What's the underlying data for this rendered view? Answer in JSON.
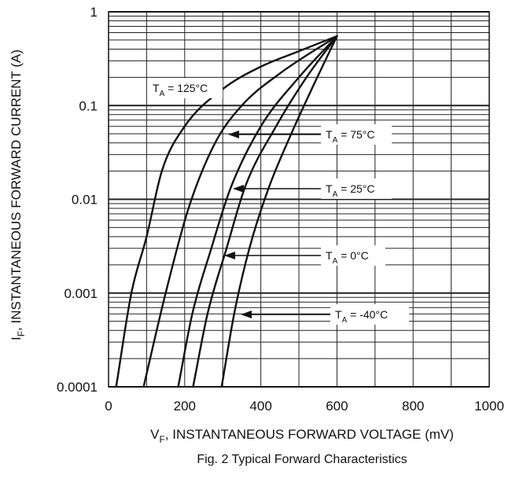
{
  "chart_data": {
    "type": "line",
    "title": "Fig. 2 Typical Forward Characteristics",
    "xlabel": {
      "main": "V",
      "sub": "F",
      "rest": ", INSTANTANEOUS FORWARD VOLTAGE (mV)"
    },
    "ylabel": {
      "main": "I",
      "sub": "F",
      "rest": ", INSTANTANEOUS FORWARD CURRENT (A)"
    },
    "xlim": [
      0,
      1000
    ],
    "ylim": [
      0.0001,
      1
    ],
    "yscale": "log",
    "grid": true,
    "x_ticks": [
      {
        "value": 0,
        "label": "0"
      },
      {
        "value": 200,
        "label": "200"
      },
      {
        "value": 400,
        "label": "400"
      },
      {
        "value": 600,
        "label": "600"
      },
      {
        "value": 800,
        "label": "800"
      },
      {
        "value": 1000,
        "label": "1000"
      }
    ],
    "y_ticks": [
      {
        "value": 1,
        "label": "1"
      },
      {
        "value": 0.1,
        "label": "0.1"
      },
      {
        "value": 0.01,
        "label": "0.01"
      },
      {
        "value": 0.001,
        "label": "0.001"
      },
      {
        "value": 0.0001,
        "label": "0.0001"
      }
    ],
    "series": [
      {
        "name": "T_A = 125°C",
        "label": {
          "main": "T",
          "sub": "A",
          "rest": " = 125°C"
        },
        "x": [
          20,
          60,
          100,
          140,
          200,
          300,
          400,
          500,
          600
        ],
        "y": [
          0.0001,
          0.001,
          0.004,
          0.02,
          0.06,
          0.15,
          0.26,
          0.38,
          0.55
        ]
      },
      {
        "name": "T_A = 75°C",
        "label": {
          "main": "T",
          "sub": "A",
          "rest": " = 75°C"
        },
        "x": [
          92,
          150,
          210,
          280,
          350,
          450,
          600
        ],
        "y": [
          0.0001,
          0.001,
          0.008,
          0.04,
          0.1,
          0.22,
          0.55
        ]
      },
      {
        "name": "T_A = 25°C",
        "label": {
          "main": "T",
          "sub": "A",
          "rest": " = 25°C"
        },
        "x": [
          183,
          220,
          270,
          320,
          400,
          500,
          600
        ],
        "y": [
          0.0001,
          0.0006,
          0.003,
          0.013,
          0.06,
          0.2,
          0.55
        ]
      },
      {
        "name": "T_A = 0°C",
        "label": {
          "main": "T",
          "sub": "A",
          "rest": " = 0°C"
        },
        "x": [
          222,
          260,
          310,
          360,
          440,
          520,
          600
        ],
        "y": [
          0.0001,
          0.0006,
          0.003,
          0.014,
          0.06,
          0.2,
          0.55
        ]
      },
      {
        "name": "T_A = -40°C",
        "label": {
          "main": "T",
          "sub": "A",
          "rest": " = -40°C"
        },
        "x": [
          297,
          330,
          370,
          420,
          480,
          540,
          600
        ],
        "y": [
          0.0001,
          0.0006,
          0.003,
          0.013,
          0.05,
          0.17,
          0.55
        ]
      }
    ]
  }
}
